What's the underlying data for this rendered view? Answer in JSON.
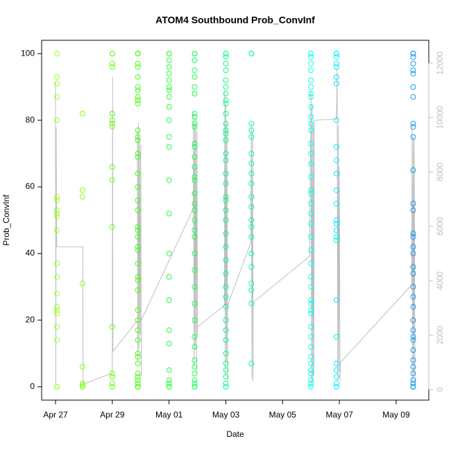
{
  "chart_data": {
    "type": "scatter",
    "title": "ATOM4 Southbound Prob_ConvInf",
    "x_label": "Date",
    "y_label": "Prob_ConvInf",
    "xlim": [
      -0.49,
      13.15
    ],
    "xticks": [
      {
        "value": 0,
        "label": "Apr 27"
      },
      {
        "value": 2,
        "label": "Apr 29"
      },
      {
        "value": 4,
        "label": "May 01"
      },
      {
        "value": 6,
        "label": "May 03"
      },
      {
        "value": 8,
        "label": "May 05"
      },
      {
        "value": 10,
        "label": "May 07"
      },
      {
        "value": 12,
        "label": "May 09"
      }
    ],
    "ylim": [
      -4,
      104
    ],
    "yticks": [
      0,
      20,
      40,
      60,
      80,
      100
    ],
    "y2lim": [
      -390,
      12840
    ],
    "y2ticks": [
      0,
      2000,
      4000,
      6000,
      8000,
      10000,
      12000
    ],
    "series": [
      {
        "color": "#99ff22",
        "x": 0.05,
        "values": [
          100,
          93,
          91,
          87,
          80,
          57,
          56,
          53,
          52,
          51,
          47,
          37,
          33,
          28,
          24,
          23,
          22,
          18,
          14,
          0,
          0,
          0
        ]
      },
      {
        "color": "#88ff11",
        "x": 0.95,
        "values": [
          82,
          59,
          57,
          31,
          6,
          1,
          0.5,
          0,
          0
        ]
      },
      {
        "color": "#66ff11",
        "x": 2.0,
        "values": [
          100,
          100,
          97,
          96,
          82,
          82,
          80,
          79,
          78,
          66,
          62,
          48,
          18,
          4,
          3,
          1,
          0,
          100
        ]
      },
      {
        "color": "#44ff11",
        "x": 2.9,
        "values": [
          100,
          100,
          100,
          100,
          100,
          97,
          96,
          93,
          90,
          89,
          87,
          86,
          85,
          77,
          75,
          74,
          70,
          69,
          64,
          60,
          56,
          53,
          48,
          47,
          45,
          42,
          41,
          37,
          33,
          32,
          29,
          23,
          20,
          17,
          14,
          10,
          9,
          7,
          4,
          3,
          2,
          1,
          0,
          0,
          0
        ]
      },
      {
        "color": "#22ff33",
        "x": 4.0,
        "values": [
          100,
          100,
          98,
          96,
          94,
          92,
          90,
          89,
          87,
          84,
          80,
          75,
          72,
          62,
          52,
          40,
          33,
          26,
          17,
          13,
          5,
          2,
          1,
          0,
          0
        ]
      },
      {
        "color": "#11ff55",
        "x": 4.9,
        "values": [
          100,
          100,
          98,
          95,
          93,
          90,
          88,
          82,
          81,
          79,
          78,
          73,
          72,
          69,
          66,
          63,
          62,
          58,
          55,
          53,
          50,
          47,
          45,
          40,
          35,
          30,
          25,
          20,
          15,
          12,
          8,
          6,
          4,
          2,
          1,
          0,
          0
        ]
      },
      {
        "color": "#00ff88",
        "x": 6.0,
        "values": [
          100,
          100,
          99,
          97,
          95,
          92,
          90,
          88,
          86,
          85,
          82,
          79,
          77,
          76,
          74,
          70,
          68,
          64,
          61,
          57,
          56,
          53,
          50,
          46,
          42,
          38,
          34,
          30,
          27,
          24,
          20,
          17,
          14,
          10,
          7,
          5,
          3,
          1,
          0
        ]
      },
      {
        "color": "#00ffaa",
        "x": 6.9,
        "values": [
          100,
          100,
          100,
          79,
          77,
          75,
          70,
          67,
          64,
          61,
          57,
          54,
          50,
          48,
          45,
          40,
          36,
          31,
          29,
          25,
          7
        ]
      },
      {
        "color": "#00ffee",
        "x": 9.0,
        "values": [
          100,
          100,
          99,
          97,
          95,
          92,
          90,
          88,
          87,
          84,
          81,
          79,
          77,
          73,
          70,
          67,
          63,
          59,
          58,
          55,
          52,
          49,
          45,
          41,
          37,
          33,
          30,
          26,
          25,
          23,
          22,
          18,
          15,
          12,
          9,
          7,
          5,
          4,
          2,
          1,
          0
        ]
      },
      {
        "color": "#00eeff",
        "x": 9.9,
        "values": [
          100,
          100,
          99,
          97,
          96,
          93,
          91,
          80,
          72,
          68,
          64,
          59,
          55,
          50,
          49,
          47,
          45,
          44,
          26,
          15,
          7,
          5,
          3,
          1,
          0
        ]
      },
      {
        "color": "#1199ee",
        "x": 12.6,
        "values": [
          100,
          100,
          99,
          97,
          95,
          94,
          90,
          87,
          79,
          78,
          75,
          65,
          55,
          53,
          46,
          45,
          42,
          40,
          36,
          34,
          30,
          27,
          24,
          20,
          17,
          15,
          14,
          11,
          8,
          6,
          4,
          2,
          1,
          0,
          0,
          0
        ]
      }
    ],
    "line_series": {
      "color": "#bebebe",
      "axis": "y2",
      "x": [
        0.0,
        0.01,
        0.02,
        0.04,
        0.96,
        0.97,
        2.0,
        2.01,
        2.02,
        2.9,
        2.88,
        2.9,
        2.92,
        2.94,
        2.96,
        2.98,
        3.0,
        3.02,
        3.02,
        4.85,
        4.86,
        4.88,
        4.9,
        4.92,
        4.94,
        4.96,
        4.98,
        5.0,
        5.0,
        5.95,
        5.96,
        5.98,
        6.0,
        6.02,
        6.04,
        6.06,
        6.06,
        6.88,
        6.9,
        6.92,
        6.94,
        6.96,
        6.96,
        8.95,
        9.0,
        9.02,
        9.04,
        9.06,
        9.08,
        9.1,
        9.12,
        9.15,
        9.9,
        9.92,
        9.94,
        9.96,
        9.98,
        10.0,
        10.02,
        10.04,
        12.55,
        12.56,
        12.58,
        12.6,
        12.62,
        12.64,
        12.66
      ],
      "values": [
        11300,
        200,
        9650,
        5250,
        5250,
        200,
        600,
        11500,
        1400,
        2550,
        9500,
        1000,
        9800,
        1500,
        9200,
        2000,
        9000,
        500,
        2550,
        6650,
        10200,
        800,
        9800,
        1500,
        10000,
        600,
        9500,
        2000,
        2300,
        3100,
        11000,
        500,
        10500,
        1000,
        9800,
        300,
        3100,
        5400,
        9800,
        400,
        9500,
        300,
        3200,
        4900,
        11000,
        200,
        10500,
        300,
        9700,
        500,
        9900,
        9900,
        9950,
        11800,
        300,
        9700,
        800,
        8200,
        300,
        1000,
        3850,
        9600,
        300,
        9300,
        500,
        9200,
        200
      ]
    }
  }
}
